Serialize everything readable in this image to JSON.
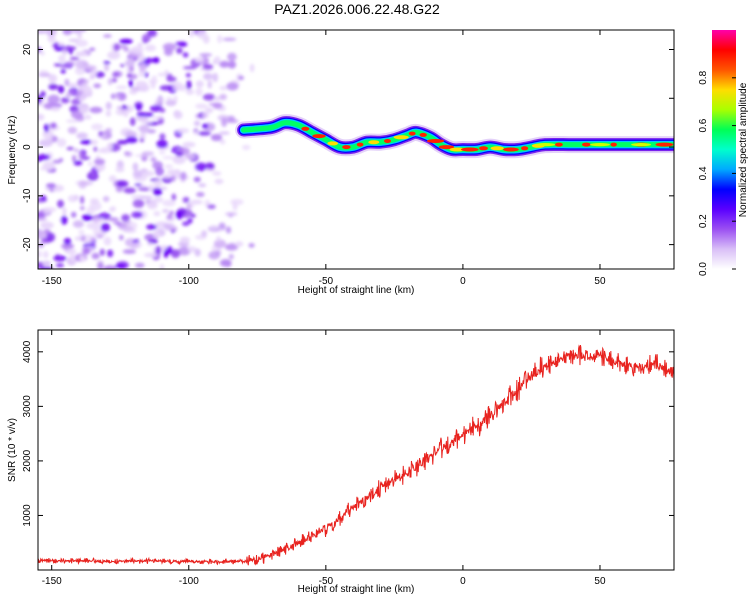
{
  "title": "PAZ1.2026.006.22.48.G22",
  "chart_data": [
    {
      "type": "heatmap",
      "title": "PAZ1.2026.006.22.48.G22",
      "xlabel": "Height of straight line (km)",
      "ylabel": "Frequency (Hz)",
      "xlim": [
        -155,
        77
      ],
      "ylim": [
        -25,
        24
      ],
      "xticks": [
        -150,
        -100,
        -50,
        0,
        50
      ],
      "yticks": [
        -20,
        -10,
        0,
        10,
        20
      ],
      "colorbar": {
        "label": "Normalized spectral amplitude",
        "range": [
          0.0,
          1.0
        ],
        "ticks": [
          "0.0",
          "0.2",
          "0.4",
          "0.6",
          "0.8"
        ],
        "colors": [
          "#ffffff",
          "#d9bff7",
          "#9b4ff2",
          "#5a00ff",
          "#0000ff",
          "#00aaff",
          "#00ffcc",
          "#00ff55",
          "#aaff00",
          "#ffdd00",
          "#ff5500",
          "#ff0000",
          "#ff00aa"
        ]
      },
      "noise_region_x": [
        -155,
        -80
      ],
      "ridge": {
        "x": [
          -80,
          -70,
          -65,
          -60,
          -55,
          -50,
          -45,
          -40,
          -35,
          -30,
          -25,
          -20,
          -17,
          -12,
          -8,
          -4,
          0,
          5,
          10,
          15,
          20,
          25,
          30,
          40,
          50,
          60,
          70,
          77
        ],
        "y": [
          3.5,
          4,
          5,
          4.5,
          3,
          1.5,
          0,
          0,
          1,
          1,
          1.5,
          2.5,
          3,
          2,
          0.5,
          -0.5,
          -0.5,
          -0.5,
          0,
          -0.5,
          -0.5,
          0,
          0.5,
          0.5,
          0.5,
          0.5,
          0.5,
          0.5
        ]
      }
    },
    {
      "type": "line",
      "xlabel": "Height of straight line (km)",
      "ylabel": "SNR (10 * v/v)",
      "xlim": [
        -155,
        77
      ],
      "ylim": [
        0,
        4400
      ],
      "xticks": [
        -150,
        -100,
        -50,
        0,
        50
      ],
      "yticks": [
        1000,
        2000,
        3000,
        4000
      ],
      "series": [
        {
          "name": "SNR",
          "color": "#e8231f",
          "x": [
            -155,
            -130,
            -110,
            -90,
            -80,
            -75,
            -70,
            -65,
            -60,
            -55,
            -50,
            -45,
            -40,
            -35,
            -30,
            -25,
            -20,
            -15,
            -10,
            -5,
            0,
            5,
            10,
            15,
            20,
            25,
            30,
            35,
            40,
            45,
            50,
            55,
            60,
            65,
            70,
            77
          ],
          "y": [
            180,
            160,
            170,
            150,
            160,
            200,
            280,
            380,
            500,
            620,
            760,
            950,
            1150,
            1320,
            1500,
            1650,
            1800,
            1950,
            2150,
            2300,
            2450,
            2650,
            2850,
            3050,
            3300,
            3550,
            3750,
            3850,
            3950,
            3900,
            3950,
            3800,
            3750,
            3700,
            3800,
            3600
          ]
        }
      ]
    }
  ]
}
